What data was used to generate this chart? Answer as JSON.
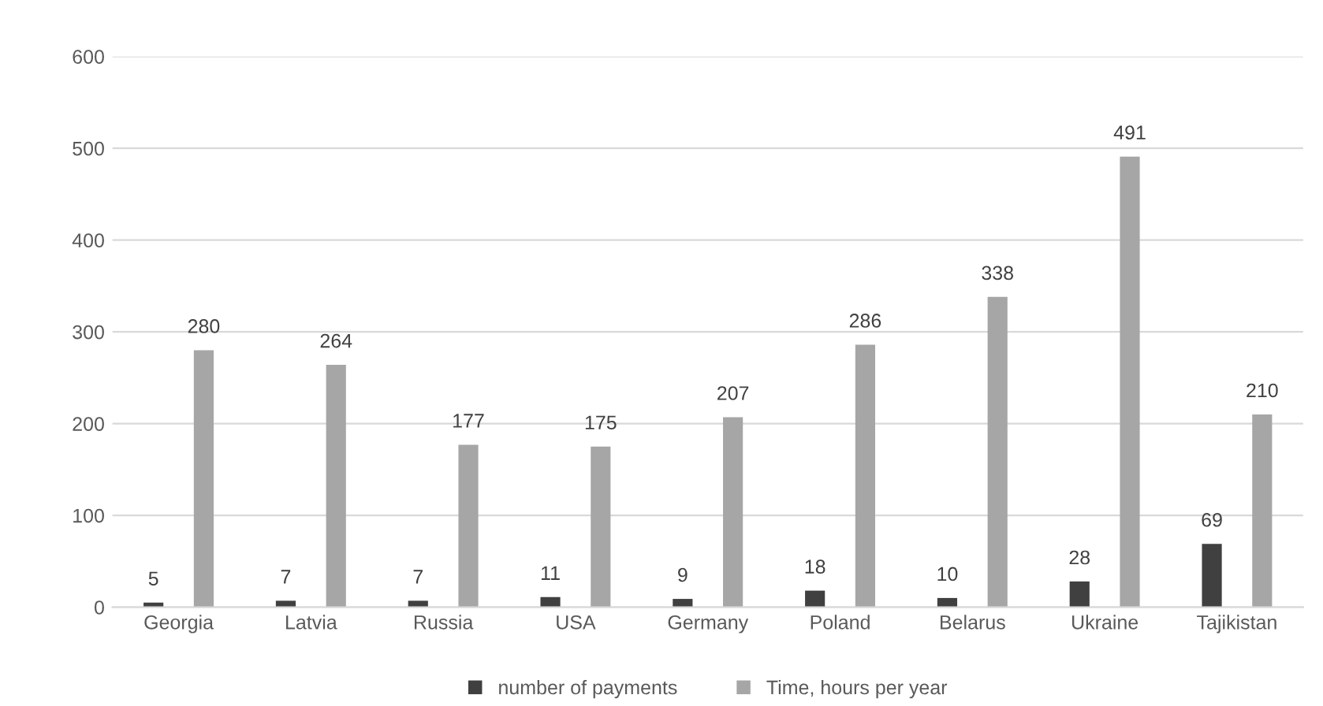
{
  "chart_data": {
    "type": "bar",
    "categories": [
      "Georgia",
      "Latvia",
      "Russia",
      "USA",
      "Germany",
      "Poland",
      "Belarus",
      "Ukraine",
      "Tajikistan"
    ],
    "series": [
      {
        "name": "number of payments",
        "color": "#404040",
        "values": [
          5,
          7,
          7,
          11,
          9,
          18,
          10,
          28,
          69
        ]
      },
      {
        "name": "Time, hours per year",
        "color": "#a6a6a6",
        "values": [
          280,
          264,
          177,
          175,
          207,
          286,
          338,
          491,
          210
        ]
      }
    ],
    "ylim": [
      0,
      600
    ],
    "yticks": [
      0,
      100,
      200,
      300,
      400,
      500,
      600
    ],
    "grid": "y",
    "legend": "bottom",
    "data_labels": true
  }
}
